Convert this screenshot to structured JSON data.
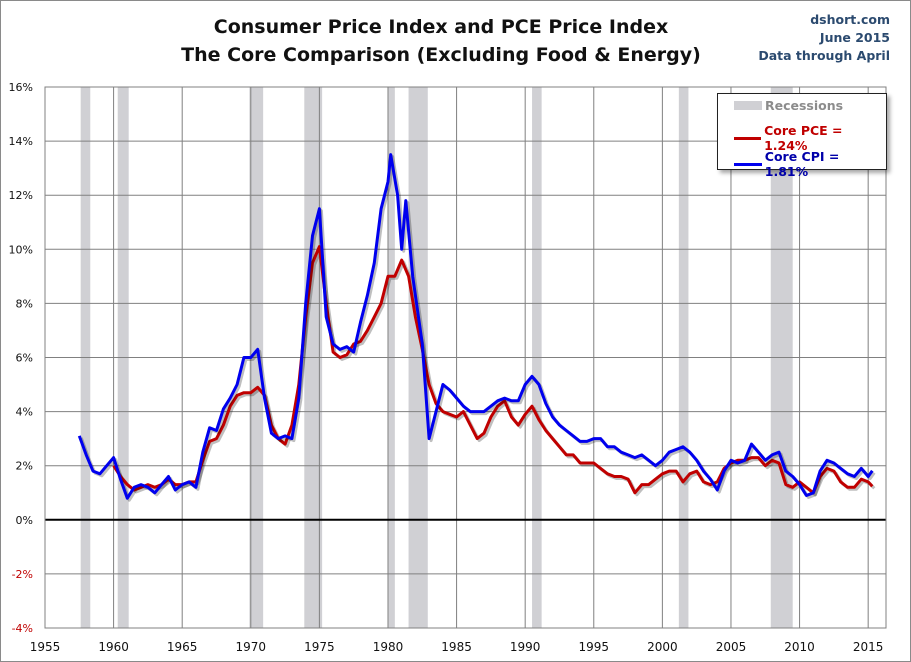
{
  "chart_data": {
    "type": "line",
    "title": "Consumer Price Index and PCE Price Index",
    "subtitle": "The Core Comparison (Excluding Food & Energy)",
    "source": {
      "site": "dshort.com",
      "date": "June 2015",
      "note": "Data through April"
    },
    "xlabel": "",
    "ylabel": "",
    "xlim": [
      1955,
      2016.3
    ],
    "ylim": [
      -4,
      16
    ],
    "x_ticks": [
      "1955",
      "1960",
      "1965",
      "1970",
      "1975",
      "1980",
      "1985",
      "1990",
      "1995",
      "2000",
      "2005",
      "2010",
      "2015"
    ],
    "y_ticks": [
      "16%",
      "14%",
      "12%",
      "10%",
      "8%",
      "6%",
      "4%",
      "2%",
      "0%",
      "-2%",
      "-4%"
    ],
    "grid": true,
    "legend_position": "top-right",
    "legend": {
      "recessions": "Recessions",
      "pce": "Core PCE = 1.24%",
      "cpi": "Core CPI = 1.81%"
    },
    "colors": {
      "pce": "#c00000",
      "cpi": "#0000ee",
      "recession": "#d0d0d4"
    },
    "recessions": [
      [
        1957.6,
        1958.3
      ],
      [
        1960.3,
        1961.1
      ],
      [
        1969.9,
        1970.9
      ],
      [
        1973.9,
        1975.2
      ],
      [
        1980.0,
        1980.5
      ],
      [
        1981.5,
        1982.9
      ],
      [
        1990.5,
        1991.2
      ],
      [
        2001.2,
        2001.9
      ],
      [
        2007.9,
        2009.5
      ]
    ],
    "series": [
      {
        "name": "Core CPI",
        "key": "cpi",
        "points": [
          [
            1957.5,
            3.1
          ],
          [
            1958,
            2.4
          ],
          [
            1958.5,
            1.8
          ],
          [
            1959,
            1.7
          ],
          [
            1959.5,
            2.0
          ],
          [
            1960,
            2.3
          ],
          [
            1960.5,
            1.5
          ],
          [
            1961,
            0.8
          ],
          [
            1961.5,
            1.2
          ],
          [
            1962,
            1.3
          ],
          [
            1962.5,
            1.2
          ],
          [
            1963,
            1.0
          ],
          [
            1963.5,
            1.3
          ],
          [
            1964,
            1.6
          ],
          [
            1964.5,
            1.1
          ],
          [
            1965,
            1.3
          ],
          [
            1965.5,
            1.4
          ],
          [
            1966,
            1.2
          ],
          [
            1966.5,
            2.5
          ],
          [
            1967,
            3.4
          ],
          [
            1967.5,
            3.3
          ],
          [
            1968,
            4.1
          ],
          [
            1968.5,
            4.5
          ],
          [
            1969,
            5.0
          ],
          [
            1969.5,
            6.0
          ],
          [
            1970,
            6.0
          ],
          [
            1970.5,
            6.3
          ],
          [
            1971,
            4.5
          ],
          [
            1971.5,
            3.2
          ],
          [
            1972,
            3.0
          ],
          [
            1972.5,
            3.1
          ],
          [
            1973,
            3.0
          ],
          [
            1973.5,
            4.5
          ],
          [
            1974,
            8.0
          ],
          [
            1974.5,
            10.5
          ],
          [
            1975,
            11.5
          ],
          [
            1975.5,
            7.5
          ],
          [
            1976,
            6.5
          ],
          [
            1976.5,
            6.3
          ],
          [
            1977,
            6.4
          ],
          [
            1977.5,
            6.2
          ],
          [
            1978,
            7.3
          ],
          [
            1978.5,
            8.3
          ],
          [
            1979,
            9.5
          ],
          [
            1979.5,
            11.5
          ],
          [
            1980,
            12.5
          ],
          [
            1980.2,
            13.5
          ],
          [
            1980.7,
            12.0
          ],
          [
            1981,
            10.0
          ],
          [
            1981.3,
            11.8
          ],
          [
            1981.8,
            9.0
          ],
          [
            1982.5,
            6.5
          ],
          [
            1983,
            3.0
          ],
          [
            1983.5,
            4.0
          ],
          [
            1984,
            5.0
          ],
          [
            1984.5,
            4.8
          ],
          [
            1985,
            4.5
          ],
          [
            1985.5,
            4.2
          ],
          [
            1986,
            4.0
          ],
          [
            1986.5,
            4.0
          ],
          [
            1987,
            4.0
          ],
          [
            1987.5,
            4.2
          ],
          [
            1988,
            4.4
          ],
          [
            1988.5,
            4.5
          ],
          [
            1989,
            4.4
          ],
          [
            1989.5,
            4.4
          ],
          [
            1990,
            5.0
          ],
          [
            1990.5,
            5.3
          ],
          [
            1991,
            5.0
          ],
          [
            1991.5,
            4.3
          ],
          [
            1992,
            3.8
          ],
          [
            1992.5,
            3.5
          ],
          [
            1993,
            3.3
          ],
          [
            1993.5,
            3.1
          ],
          [
            1994,
            2.9
          ],
          [
            1994.5,
            2.9
          ],
          [
            1995,
            3.0
          ],
          [
            1995.5,
            3.0
          ],
          [
            1996,
            2.7
          ],
          [
            1996.5,
            2.7
          ],
          [
            1997,
            2.5
          ],
          [
            1997.5,
            2.4
          ],
          [
            1998,
            2.3
          ],
          [
            1998.5,
            2.4
          ],
          [
            1999,
            2.2
          ],
          [
            1999.5,
            2.0
          ],
          [
            2000,
            2.2
          ],
          [
            2000.5,
            2.5
          ],
          [
            2001,
            2.6
          ],
          [
            2001.5,
            2.7
          ],
          [
            2002,
            2.5
          ],
          [
            2002.5,
            2.2
          ],
          [
            2003,
            1.8
          ],
          [
            2003.5,
            1.5
          ],
          [
            2004,
            1.1
          ],
          [
            2004.5,
            1.8
          ],
          [
            2005,
            2.2
          ],
          [
            2005.5,
            2.1
          ],
          [
            2006,
            2.2
          ],
          [
            2006.5,
            2.8
          ],
          [
            2007,
            2.5
          ],
          [
            2007.5,
            2.2
          ],
          [
            2008,
            2.4
          ],
          [
            2008.5,
            2.5
          ],
          [
            2009,
            1.8
          ],
          [
            2009.5,
            1.6
          ],
          [
            2010,
            1.3
          ],
          [
            2010.5,
            0.9
          ],
          [
            2011,
            1.0
          ],
          [
            2011.5,
            1.8
          ],
          [
            2012,
            2.2
          ],
          [
            2012.5,
            2.1
          ],
          [
            2013,
            1.9
          ],
          [
            2013.5,
            1.7
          ],
          [
            2014,
            1.6
          ],
          [
            2014.5,
            1.9
          ],
          [
            2015,
            1.6
          ],
          [
            2015.3,
            1.81
          ]
        ]
      },
      {
        "name": "Core PCE",
        "key": "pce",
        "points": [
          [
            1960,
            2.0
          ],
          [
            1960.5,
            1.6
          ],
          [
            1961,
            1.3
          ],
          [
            1961.5,
            1.1
          ],
          [
            1962,
            1.2
          ],
          [
            1962.5,
            1.3
          ],
          [
            1963,
            1.2
          ],
          [
            1963.5,
            1.3
          ],
          [
            1964,
            1.5
          ],
          [
            1964.5,
            1.3
          ],
          [
            1965,
            1.3
          ],
          [
            1965.5,
            1.4
          ],
          [
            1966,
            1.4
          ],
          [
            1966.5,
            2.2
          ],
          [
            1967,
            2.9
          ],
          [
            1967.5,
            3.0
          ],
          [
            1968,
            3.5
          ],
          [
            1968.5,
            4.2
          ],
          [
            1969,
            4.6
          ],
          [
            1969.5,
            4.7
          ],
          [
            1970,
            4.7
          ],
          [
            1970.5,
            4.9
          ],
          [
            1971,
            4.6
          ],
          [
            1971.5,
            3.5
          ],
          [
            1972,
            3.0
          ],
          [
            1972.5,
            2.8
          ],
          [
            1973,
            3.5
          ],
          [
            1973.5,
            5.0
          ],
          [
            1974,
            7.5
          ],
          [
            1974.5,
            9.5
          ],
          [
            1975,
            10.1
          ],
          [
            1975.5,
            8.0
          ],
          [
            1976,
            6.2
          ],
          [
            1976.5,
            6.0
          ],
          [
            1977,
            6.1
          ],
          [
            1977.5,
            6.5
          ],
          [
            1978,
            6.6
          ],
          [
            1978.5,
            7.0
          ],
          [
            1979,
            7.5
          ],
          [
            1979.5,
            8.0
          ],
          [
            1980,
            9.0
          ],
          [
            1980.5,
            9.0
          ],
          [
            1981,
            9.6
          ],
          [
            1981.5,
            9.0
          ],
          [
            1982,
            7.5
          ],
          [
            1982.5,
            6.3
          ],
          [
            1983,
            5.0
          ],
          [
            1983.5,
            4.3
          ],
          [
            1984,
            4.0
          ],
          [
            1984.5,
            3.9
          ],
          [
            1985,
            3.8
          ],
          [
            1985.5,
            4.0
          ],
          [
            1986,
            3.5
          ],
          [
            1986.5,
            3.0
          ],
          [
            1987,
            3.2
          ],
          [
            1987.5,
            3.8
          ],
          [
            1988,
            4.2
          ],
          [
            1988.5,
            4.4
          ],
          [
            1989,
            3.8
          ],
          [
            1989.5,
            3.5
          ],
          [
            1990,
            3.9
          ],
          [
            1990.5,
            4.2
          ],
          [
            1991,
            3.7
          ],
          [
            1991.5,
            3.3
          ],
          [
            1992,
            3.0
          ],
          [
            1992.5,
            2.7
          ],
          [
            1993,
            2.4
          ],
          [
            1993.5,
            2.4
          ],
          [
            1994,
            2.1
          ],
          [
            1994.5,
            2.1
          ],
          [
            1995,
            2.1
          ],
          [
            1995.5,
            1.9
          ],
          [
            1996,
            1.7
          ],
          [
            1996.5,
            1.6
          ],
          [
            1997,
            1.6
          ],
          [
            1997.5,
            1.5
          ],
          [
            1998,
            1.0
          ],
          [
            1998.5,
            1.3
          ],
          [
            1999,
            1.3
          ],
          [
            1999.5,
            1.5
          ],
          [
            2000,
            1.7
          ],
          [
            2000.5,
            1.8
          ],
          [
            2001,
            1.8
          ],
          [
            2001.5,
            1.4
          ],
          [
            2002,
            1.7
          ],
          [
            2002.5,
            1.8
          ],
          [
            2003,
            1.4
          ],
          [
            2003.5,
            1.3
          ],
          [
            2004,
            1.4
          ],
          [
            2004.5,
            1.9
          ],
          [
            2005,
            2.1
          ],
          [
            2005.5,
            2.2
          ],
          [
            2006,
            2.2
          ],
          [
            2006.5,
            2.3
          ],
          [
            2007,
            2.3
          ],
          [
            2007.5,
            2.0
          ],
          [
            2008,
            2.2
          ],
          [
            2008.5,
            2.1
          ],
          [
            2009,
            1.3
          ],
          [
            2009.5,
            1.2
          ],
          [
            2010,
            1.4
          ],
          [
            2010.5,
            1.2
          ],
          [
            2011,
            1.0
          ],
          [
            2011.5,
            1.6
          ],
          [
            2012,
            1.9
          ],
          [
            2012.5,
            1.8
          ],
          [
            2013,
            1.4
          ],
          [
            2013.5,
            1.2
          ],
          [
            2014,
            1.2
          ],
          [
            2014.5,
            1.5
          ],
          [
            2015,
            1.4
          ],
          [
            2015.3,
            1.24
          ]
        ]
      }
    ]
  }
}
